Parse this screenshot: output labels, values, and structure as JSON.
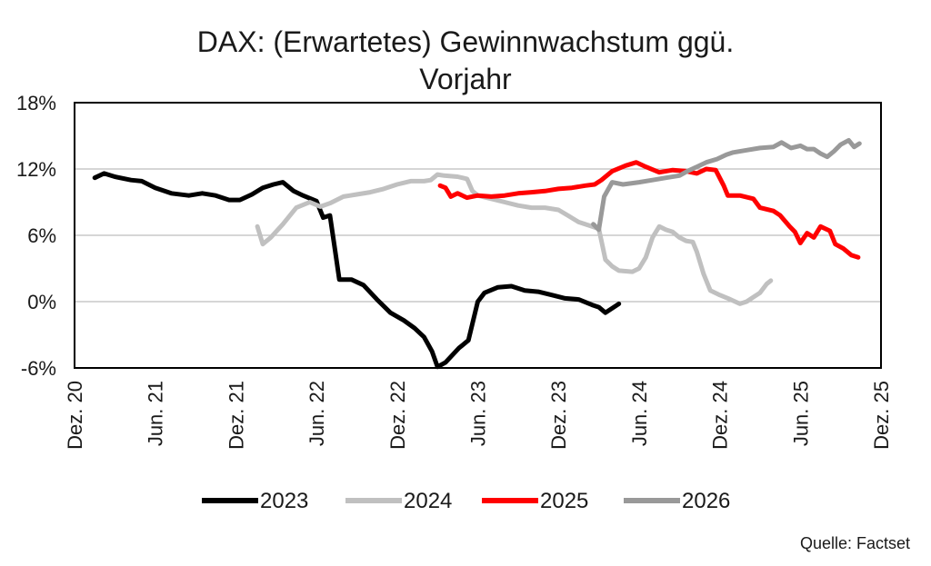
{
  "chart_data": {
    "type": "line",
    "title_lines": [
      "DAX: (Erwartetes) Gewinnwachstum ggü.",
      "Vorjahr"
    ],
    "x_tick_labels": [
      "Dez. 20",
      "Jun. 21",
      "Dez. 21",
      "Jun. 22",
      "Dez. 22",
      "Jun. 23",
      "Dez. 23",
      "Jun. 24",
      "Dez. 24",
      "Jun. 25",
      "Dez. 25"
    ],
    "x_range": [
      0,
      60
    ],
    "y_tick_labels": [
      "18%",
      "12%",
      "6%",
      "0%",
      "-6%"
    ],
    "y_ticks": [
      18,
      12,
      6,
      0,
      -6
    ],
    "ylim": [
      -6,
      18
    ],
    "gridlines": "horizontal",
    "source": "Quelle: Factset",
    "series": [
      {
        "name": "2023",
        "color": "#000000",
        "points": [
          [
            1.5,
            11.2
          ],
          [
            2.2,
            11.6
          ],
          [
            3.0,
            11.3
          ],
          [
            4.2,
            11.0
          ],
          [
            5.0,
            10.9
          ],
          [
            6.0,
            10.3
          ],
          [
            7.2,
            9.8
          ],
          [
            8.5,
            9.6
          ],
          [
            9.5,
            9.8
          ],
          [
            10.5,
            9.6
          ],
          [
            11.5,
            9.2
          ],
          [
            12.3,
            9.2
          ],
          [
            13.2,
            9.7
          ],
          [
            14.0,
            10.3
          ],
          [
            14.8,
            10.6
          ],
          [
            15.5,
            10.8
          ],
          [
            16.3,
            10.0
          ],
          [
            17.0,
            9.6
          ],
          [
            18.0,
            9.1
          ],
          [
            18.5,
            7.6
          ],
          [
            19.0,
            7.8
          ],
          [
            19.4,
            4.5
          ],
          [
            19.7,
            2.0
          ],
          [
            20.6,
            2.0
          ],
          [
            21.5,
            1.5
          ],
          [
            22.5,
            0.2
          ],
          [
            23.5,
            -1.0
          ],
          [
            24.5,
            -1.7
          ],
          [
            25.3,
            -2.4
          ],
          [
            26.0,
            -3.2
          ],
          [
            26.6,
            -4.5
          ],
          [
            27.0,
            -5.9
          ],
          [
            27.6,
            -5.5
          ],
          [
            28.6,
            -4.2
          ],
          [
            29.3,
            -3.5
          ],
          [
            29.6,
            -2.0
          ],
          [
            30.0,
            0.0
          ],
          [
            30.5,
            0.8
          ],
          [
            31.5,
            1.3
          ],
          [
            32.5,
            1.4
          ],
          [
            33.5,
            1.0
          ],
          [
            34.5,
            0.9
          ],
          [
            35.5,
            0.6
          ],
          [
            36.5,
            0.3
          ],
          [
            37.5,
            0.2
          ],
          [
            38.5,
            -0.3
          ],
          [
            39.0,
            -0.5
          ],
          [
            39.5,
            -1.0
          ],
          [
            40.0,
            -0.6
          ],
          [
            40.5,
            -0.2
          ]
        ]
      },
      {
        "name": "2024",
        "color": "#c0c0c0",
        "points": [
          [
            13.6,
            6.8
          ],
          [
            14.0,
            5.2
          ],
          [
            14.6,
            5.8
          ],
          [
            15.5,
            7.0
          ],
          [
            16.5,
            8.5
          ],
          [
            17.5,
            9.0
          ],
          [
            18.3,
            8.6
          ],
          [
            19.0,
            8.9
          ],
          [
            20.0,
            9.5
          ],
          [
            21.0,
            9.7
          ],
          [
            22.0,
            9.9
          ],
          [
            23.0,
            10.2
          ],
          [
            24.0,
            10.6
          ],
          [
            25.0,
            10.9
          ],
          [
            26.0,
            10.9
          ],
          [
            26.5,
            11.0
          ],
          [
            27.0,
            11.5
          ],
          [
            27.5,
            11.4
          ],
          [
            28.5,
            11.3
          ],
          [
            29.2,
            11.1
          ],
          [
            29.6,
            10.0
          ],
          [
            30.0,
            9.6
          ],
          [
            31.0,
            9.3
          ],
          [
            32.0,
            9.0
          ],
          [
            33.0,
            8.7
          ],
          [
            34.0,
            8.5
          ],
          [
            35.0,
            8.5
          ],
          [
            36.0,
            8.3
          ],
          [
            36.7,
            7.8
          ],
          [
            37.5,
            7.2
          ],
          [
            38.5,
            6.8
          ],
          [
            39.0,
            6.6
          ],
          [
            39.2,
            5.5
          ],
          [
            39.5,
            3.8
          ],
          [
            40.0,
            3.2
          ],
          [
            40.5,
            2.8
          ],
          [
            41.5,
            2.7
          ],
          [
            42.0,
            3.0
          ],
          [
            42.5,
            4.0
          ],
          [
            43.0,
            5.8
          ],
          [
            43.5,
            6.8
          ],
          [
            44.0,
            6.5
          ],
          [
            44.5,
            6.3
          ],
          [
            45.0,
            5.8
          ],
          [
            45.5,
            5.5
          ],
          [
            46.0,
            5.4
          ],
          [
            46.3,
            4.5
          ],
          [
            46.8,
            2.5
          ],
          [
            47.3,
            1.0
          ],
          [
            48.0,
            0.6
          ],
          [
            48.8,
            0.2
          ],
          [
            49.5,
            -0.2
          ],
          [
            50.0,
            0.0
          ],
          [
            50.5,
            0.4
          ],
          [
            51.0,
            0.8
          ],
          [
            51.5,
            1.6
          ],
          [
            51.8,
            1.9
          ]
        ]
      },
      {
        "name": "2025",
        "color": "#ff0000",
        "points": [
          [
            27.2,
            10.5
          ],
          [
            27.6,
            10.3
          ],
          [
            28.0,
            9.5
          ],
          [
            28.5,
            9.8
          ],
          [
            29.2,
            9.4
          ],
          [
            30.0,
            9.6
          ],
          [
            31.0,
            9.5
          ],
          [
            32.0,
            9.6
          ],
          [
            33.0,
            9.8
          ],
          [
            34.0,
            9.9
          ],
          [
            35.0,
            10.0
          ],
          [
            36.0,
            10.2
          ],
          [
            37.0,
            10.3
          ],
          [
            38.0,
            10.5
          ],
          [
            38.7,
            10.6
          ],
          [
            39.2,
            11.0
          ],
          [
            40.0,
            11.8
          ],
          [
            41.0,
            12.3
          ],
          [
            41.8,
            12.6
          ],
          [
            42.5,
            12.2
          ],
          [
            43.5,
            11.7
          ],
          [
            44.5,
            11.9
          ],
          [
            45.5,
            11.8
          ],
          [
            46.3,
            11.6
          ],
          [
            47.0,
            12.0
          ],
          [
            47.7,
            11.9
          ],
          [
            48.3,
            10.5
          ],
          [
            48.6,
            9.6
          ],
          [
            49.5,
            9.6
          ],
          [
            50.5,
            9.3
          ],
          [
            51.0,
            8.5
          ],
          [
            52.0,
            8.2
          ],
          [
            52.5,
            7.8
          ],
          [
            53.2,
            6.8
          ],
          [
            53.6,
            6.3
          ],
          [
            54.0,
            5.3
          ],
          [
            54.5,
            6.2
          ],
          [
            55.0,
            5.8
          ],
          [
            55.5,
            6.8
          ],
          [
            56.2,
            6.4
          ],
          [
            56.6,
            5.2
          ],
          [
            57.2,
            4.8
          ],
          [
            57.8,
            4.2
          ],
          [
            58.3,
            4.0
          ]
        ]
      },
      {
        "name": "2026",
        "color": "#999999",
        "points": [
          [
            38.6,
            7.0
          ],
          [
            39.0,
            6.5
          ],
          [
            39.4,
            9.5
          ],
          [
            40.0,
            10.8
          ],
          [
            40.8,
            10.6
          ],
          [
            42.0,
            10.8
          ],
          [
            43.0,
            11.0
          ],
          [
            44.0,
            11.2
          ],
          [
            45.0,
            11.4
          ],
          [
            45.6,
            11.8
          ],
          [
            46.3,
            12.2
          ],
          [
            47.0,
            12.6
          ],
          [
            47.8,
            12.9
          ],
          [
            48.5,
            13.3
          ],
          [
            49.0,
            13.5
          ],
          [
            50.0,
            13.7
          ],
          [
            51.0,
            13.9
          ],
          [
            52.0,
            14.0
          ],
          [
            52.6,
            14.4
          ],
          [
            53.3,
            13.9
          ],
          [
            54.0,
            14.1
          ],
          [
            54.5,
            13.8
          ],
          [
            55.0,
            13.8
          ],
          [
            55.5,
            13.4
          ],
          [
            56.0,
            13.1
          ],
          [
            56.5,
            13.6
          ],
          [
            57.0,
            14.2
          ],
          [
            57.6,
            14.6
          ],
          [
            58.0,
            14.0
          ],
          [
            58.4,
            14.3
          ]
        ]
      }
    ]
  }
}
